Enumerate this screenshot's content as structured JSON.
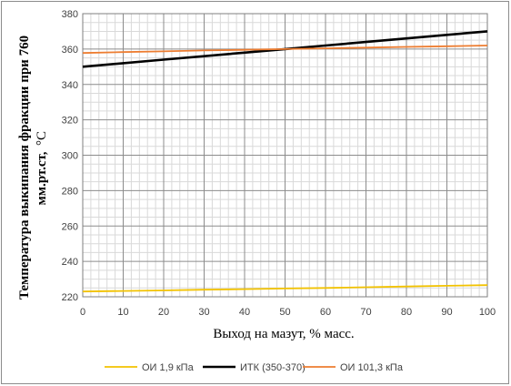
{
  "chart_data": {
    "type": "line",
    "xlabel": "Выход на мазут, % масс.",
    "ylabel": "Температура выкипания фракции при 760 мм.рт.ст, °С",
    "ylabel_line1": "Температура выкипания фракции при 760",
    "ylabel_line2": "мм.рт.ст,",
    "ylabel_unit": "°С",
    "xlim": [
      0,
      100
    ],
    "ylim": [
      220,
      380
    ],
    "x_ticks": [
      0,
      10,
      20,
      30,
      40,
      50,
      60,
      70,
      80,
      90,
      100
    ],
    "y_ticks": [
      220,
      240,
      260,
      280,
      300,
      320,
      340,
      360,
      380
    ],
    "grid": true,
    "legend_position": "bottom",
    "series": [
      {
        "name": "ОИ 1,9 кПа",
        "color": "#f2c200",
        "x": [
          0,
          10,
          20,
          30,
          40,
          50,
          60,
          70,
          80,
          90,
          100
        ],
        "values": [
          223,
          223.3,
          223.6,
          224,
          224.3,
          224.7,
          225,
          225.4,
          225.8,
          226.2,
          226.6
        ]
      },
      {
        "name": "ИТК (350-370)",
        "color": "#000000",
        "x": [
          0,
          10,
          20,
          30,
          40,
          50,
          60,
          70,
          80,
          90,
          100
        ],
        "values": [
          350,
          352,
          354,
          356,
          358,
          360,
          362,
          364,
          366,
          368,
          370
        ]
      },
      {
        "name": "ОИ 101,3 кПа",
        "color": "#ed7d31",
        "x": [
          0,
          10,
          20,
          30,
          40,
          50,
          60,
          70,
          80,
          90,
          100
        ],
        "values": [
          357.8,
          358.3,
          358.7,
          359.2,
          359.6,
          360,
          360.4,
          360.8,
          361.2,
          361.6,
          362
        ]
      }
    ]
  }
}
